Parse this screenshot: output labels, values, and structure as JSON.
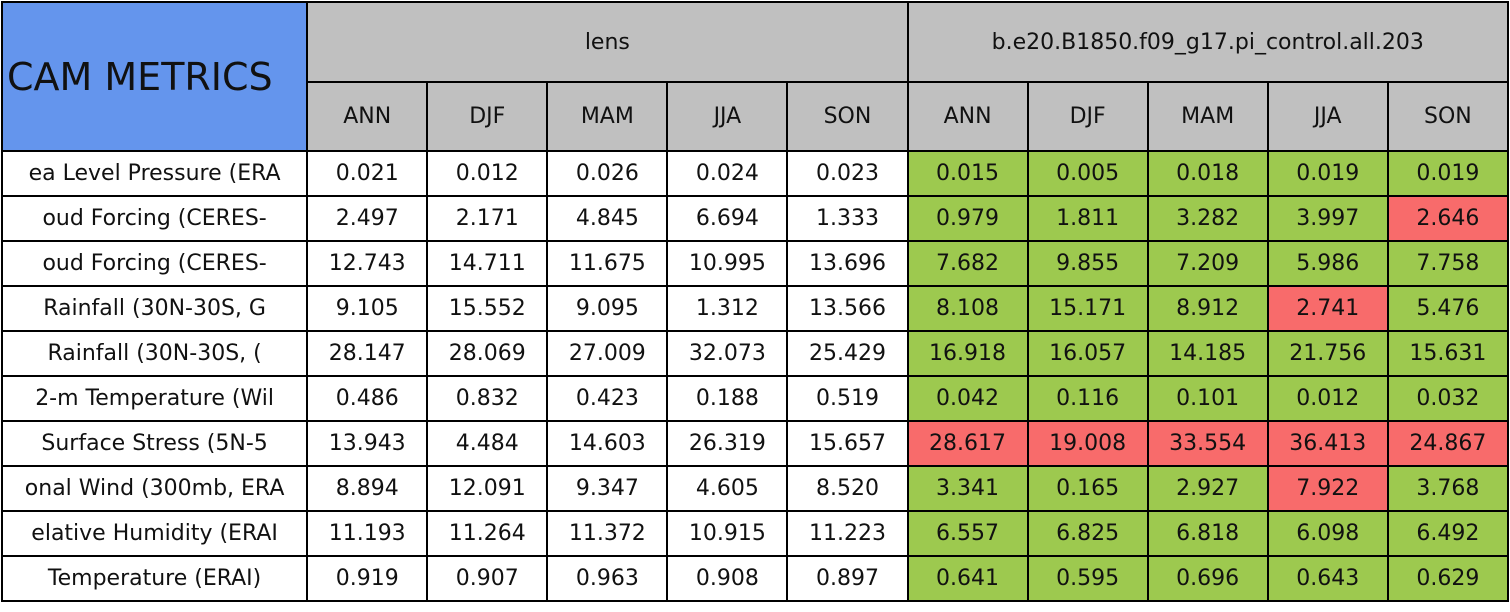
{
  "header": {
    "title": "CAM METRICS",
    "groups": [
      "lens",
      "b.e20.B1850.f09_g17.pi_control.all.203"
    ],
    "seasons": [
      "ANN",
      "DJF",
      "MAM",
      "JJA",
      "SON"
    ]
  },
  "table": {
    "rows": [
      {
        "label": "ea Level Pressure (ERA",
        "lens": [
          "0.021",
          "0.012",
          "0.026",
          "0.024",
          "0.023"
        ],
        "control": [
          "0.015",
          "0.005",
          "0.018",
          "0.019",
          "0.019"
        ],
        "control_colors": [
          "#9dc94f",
          "#9dc94f",
          "#9dc94f",
          "#9dc94f",
          "#9dc94f"
        ]
      },
      {
        "label": "oud Forcing (CERES-",
        "lens": [
          "2.497",
          "2.171",
          "4.845",
          "6.694",
          "1.333"
        ],
        "control": [
          "0.979",
          "1.811",
          "3.282",
          "3.997",
          "2.646"
        ],
        "control_colors": [
          "#9dc94f",
          "#9dc94f",
          "#9dc94f",
          "#9dc94f",
          "#f86b6b"
        ]
      },
      {
        "label": "oud Forcing (CERES-",
        "lens": [
          "12.743",
          "14.711",
          "11.675",
          "10.995",
          "13.696"
        ],
        "control": [
          "7.682",
          "9.855",
          "7.209",
          "5.986",
          "7.758"
        ],
        "control_colors": [
          "#9dc94f",
          "#9dc94f",
          "#9dc94f",
          "#9dc94f",
          "#9dc94f"
        ]
      },
      {
        "label": "Rainfall (30N-30S, G",
        "lens": [
          "9.105",
          "15.552",
          "9.095",
          "1.312",
          "13.566"
        ],
        "control": [
          "8.108",
          "15.171",
          "8.912",
          "2.741",
          "5.476"
        ],
        "control_colors": [
          "#9dc94f",
          "#9dc94f",
          "#9dc94f",
          "#f86b6b",
          "#9dc94f"
        ]
      },
      {
        "label": "Rainfall (30N-30S, (",
        "lens": [
          "28.147",
          "28.069",
          "27.009",
          "32.073",
          "25.429"
        ],
        "control": [
          "16.918",
          "16.057",
          "14.185",
          "21.756",
          "15.631"
        ],
        "control_colors": [
          "#9dc94f",
          "#9dc94f",
          "#9dc94f",
          "#9dc94f",
          "#9dc94f"
        ]
      },
      {
        "label": "2-m Temperature (Wil",
        "lens": [
          "0.486",
          "0.832",
          "0.423",
          "0.188",
          "0.519"
        ],
        "control": [
          "0.042",
          "0.116",
          "0.101",
          "0.012",
          "0.032"
        ],
        "control_colors": [
          "#9dc94f",
          "#9dc94f",
          "#9dc94f",
          "#9dc94f",
          "#9dc94f"
        ]
      },
      {
        "label": "Surface Stress (5N-5",
        "lens": [
          "13.943",
          "4.484",
          "14.603",
          "26.319",
          "15.657"
        ],
        "control": [
          "28.617",
          "19.008",
          "33.554",
          "36.413",
          "24.867"
        ],
        "control_colors": [
          "#f86b6b",
          "#f86b6b",
          "#f86b6b",
          "#f86b6b",
          "#f86b6b"
        ]
      },
      {
        "label": "onal Wind (300mb, ERA",
        "lens": [
          "8.894",
          "12.091",
          "9.347",
          "4.605",
          "8.520"
        ],
        "control": [
          "3.341",
          "0.165",
          "2.927",
          "7.922",
          "3.768"
        ],
        "control_colors": [
          "#9dc94f",
          "#9dc94f",
          "#9dc94f",
          "#f86b6b",
          "#9dc94f"
        ]
      },
      {
        "label": "elative Humidity (ERAI",
        "lens": [
          "11.193",
          "11.264",
          "11.372",
          "10.915",
          "11.223"
        ],
        "control": [
          "6.557",
          "6.825",
          "6.818",
          "6.098",
          "6.492"
        ],
        "control_colors": [
          "#9dc94f",
          "#9dc94f",
          "#9dc94f",
          "#9dc94f",
          "#9dc94f"
        ]
      },
      {
        "label": "Temperature (ERAI)",
        "lens": [
          "0.919",
          "0.907",
          "0.963",
          "0.908",
          "0.897"
        ],
        "control": [
          "0.641",
          "0.595",
          "0.696",
          "0.643",
          "0.629"
        ],
        "control_colors": [
          "#9dc94f",
          "#9dc94f",
          "#9dc94f",
          "#9dc94f",
          "#9dc94f"
        ]
      }
    ]
  }
}
